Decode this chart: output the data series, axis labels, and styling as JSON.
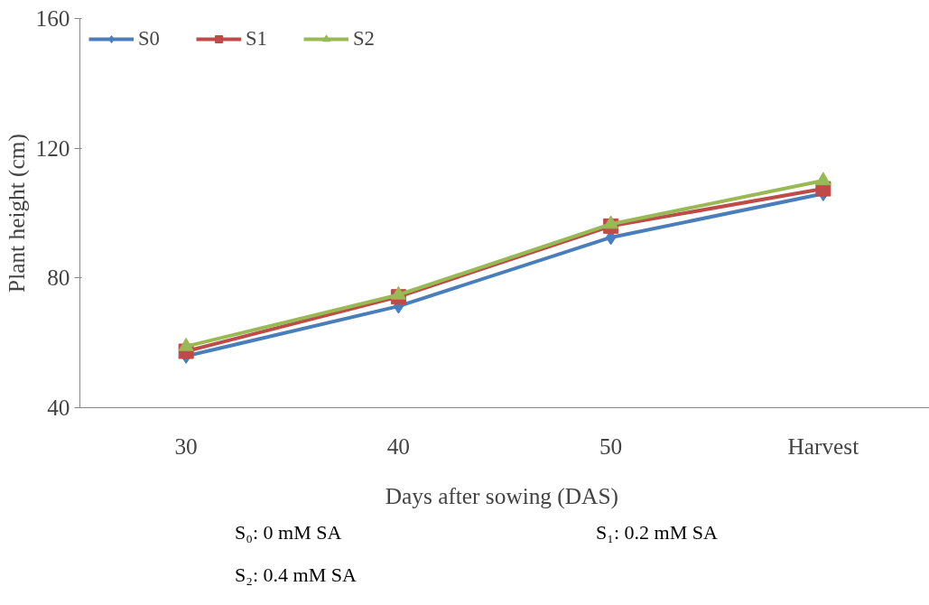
{
  "chart_data": {
    "type": "line",
    "xlabel": "Days after  sowing (DAS)",
    "ylabel": "Plant height (cm)",
    "categories": [
      "30",
      "40",
      "50",
      "Harvest"
    ],
    "series": [
      {
        "name": "S0",
        "color": "#4a7ebb",
        "marker": "diamond",
        "values": [
          55.9,
          71.3,
          92.5,
          106
        ]
      },
      {
        "name": "S1",
        "color": "#be4b48",
        "marker": "square",
        "values": [
          57.4,
          74.2,
          96,
          107.5
        ]
      },
      {
        "name": "S2",
        "color": "#98b954",
        "marker": "triangle",
        "values": [
          58.9,
          74.8,
          96.6,
          110
        ]
      }
    ],
    "ylim": [
      40,
      160
    ],
    "yticks": [
      40,
      80,
      120,
      160
    ],
    "grid": false,
    "legend": "top left",
    "annotations": [
      "S₀: 0 mM SA",
      "S₁: 0.2 mM SA",
      "S₂: 0.4 mM SA"
    ]
  }
}
